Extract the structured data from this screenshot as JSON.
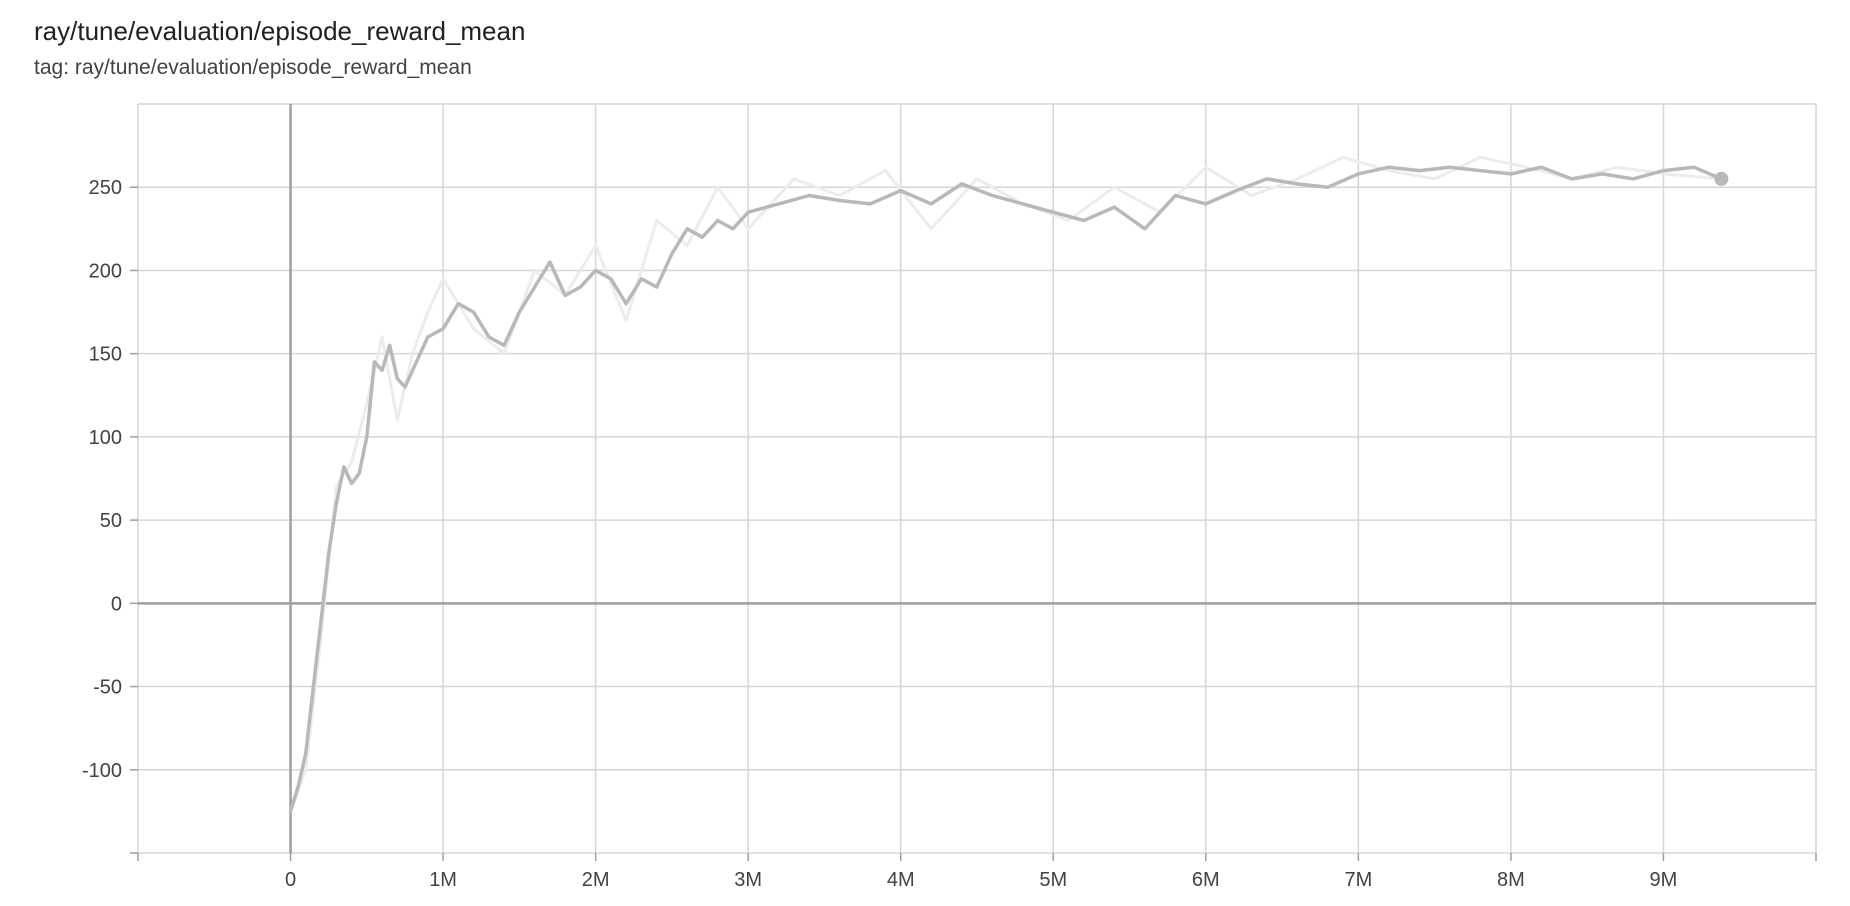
{
  "title": "ray/tune/evaluation/episode_reward_mean",
  "subtitle": "tag: ray/tune/evaluation/episode_reward_mean",
  "chart_data": {
    "type": "line",
    "title": "ray/tune/evaluation/episode_reward_mean",
    "xlabel": "",
    "ylabel": "",
    "xlim": [
      -1000000,
      10000000
    ],
    "ylim": [
      -150,
      300
    ],
    "x_ticks": [
      0,
      1000000,
      2000000,
      3000000,
      4000000,
      5000000,
      6000000,
      7000000,
      8000000,
      9000000
    ],
    "x_tick_labels": [
      "0",
      "1M",
      "2M",
      "3M",
      "4M",
      "5M",
      "6M",
      "7M",
      "8M",
      "9M"
    ],
    "y_ticks": [
      -100,
      -50,
      0,
      50,
      100,
      150,
      200,
      250
    ],
    "y_tick_labels": [
      "-100",
      "-50",
      "0",
      "50",
      "100",
      "150",
      "200",
      "250"
    ],
    "grid": true,
    "legend": "none",
    "colors": {
      "smoothed": "#b8b8b8",
      "raw": "#ececec",
      "grid": "#d6d6d6",
      "axis": "#9e9e9e"
    },
    "series": [
      {
        "values_kind": "smoothed",
        "x": [
          0,
          50000,
          100000,
          150000,
          200000,
          250000,
          300000,
          350000,
          400000,
          450000,
          500000,
          550000,
          600000,
          650000,
          700000,
          750000,
          800000,
          900000,
          1000000,
          1100000,
          1200000,
          1300000,
          1400000,
          1500000,
          1600000,
          1700000,
          1800000,
          1900000,
          2000000,
          2100000,
          2200000,
          2300000,
          2400000,
          2500000,
          2600000,
          2700000,
          2800000,
          2900000,
          3000000,
          3200000,
          3400000,
          3600000,
          3800000,
          4000000,
          4200000,
          4400000,
          4600000,
          4800000,
          5000000,
          5200000,
          5400000,
          5600000,
          5800000,
          6000000,
          6200000,
          6400000,
          6600000,
          6800000,
          7000000,
          7200000,
          7400000,
          7600000,
          7800000,
          8000000,
          8200000,
          8400000,
          8600000,
          8800000,
          9000000,
          9200000,
          9380000
        ],
        "y": [
          -125,
          -110,
          -90,
          -50,
          -10,
          30,
          60,
          82,
          72,
          78,
          100,
          145,
          140,
          155,
          135,
          130,
          140,
          160,
          165,
          180,
          175,
          160,
          155,
          175,
          190,
          205,
          185,
          190,
          200,
          195,
          180,
          195,
          190,
          210,
          225,
          220,
          230,
          225,
          235,
          240,
          245,
          242,
          240,
          248,
          240,
          252,
          245,
          240,
          235,
          230,
          238,
          225,
          245,
          240,
          248,
          255,
          252,
          250,
          258,
          262,
          260,
          262,
          260,
          258,
          262,
          255,
          258,
          255,
          260,
          262,
          255
        ]
      },
      {
        "values_kind": "raw",
        "x": [
          0,
          100000,
          200000,
          300000,
          400000,
          500000,
          600000,
          700000,
          800000,
          900000,
          1000000,
          1200000,
          1400000,
          1600000,
          1800000,
          2000000,
          2200000,
          2400000,
          2600000,
          2800000,
          3000000,
          3300000,
          3600000,
          3900000,
          4200000,
          4500000,
          4800000,
          5100000,
          5400000,
          5700000,
          6000000,
          6300000,
          6600000,
          6900000,
          7200000,
          7500000,
          7800000,
          8100000,
          8400000,
          8700000,
          9000000,
          9380000
        ],
        "y": [
          -125,
          -100,
          -20,
          70,
          85,
          120,
          160,
          110,
          150,
          175,
          195,
          165,
          150,
          200,
          185,
          215,
          170,
          230,
          215,
          250,
          225,
          255,
          245,
          260,
          225,
          255,
          240,
          230,
          250,
          235,
          262,
          245,
          255,
          268,
          260,
          255,
          268,
          262,
          255,
          262,
          258,
          255
        ]
      }
    ]
  }
}
